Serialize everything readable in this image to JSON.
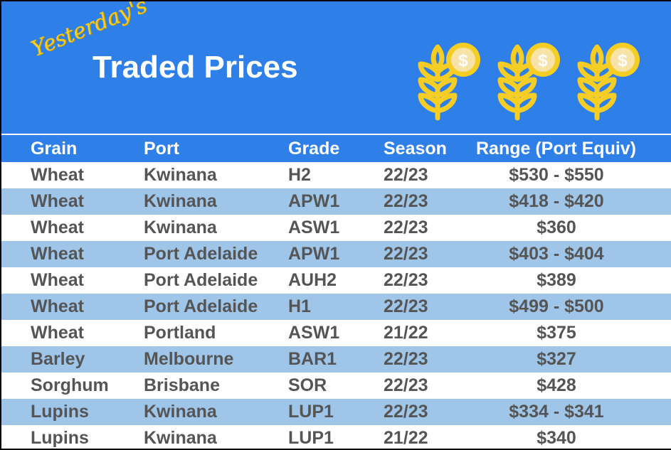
{
  "banner": {
    "script_title": "Yesterday's",
    "main_title": "Traded Prices",
    "icons": [
      "wheat-dollar-icon",
      "wheat-dollar-icon",
      "wheat-dollar-icon"
    ],
    "colors": {
      "background": "#2f7fe8",
      "accent_yellow": "#f5cd25",
      "coin_light": "#f7e3a8"
    }
  },
  "table": {
    "headers": [
      "Grain",
      "Port",
      "Grade",
      "Season",
      "Range (Port Equiv)"
    ],
    "rows": [
      [
        "Wheat",
        "Kwinana",
        "H2",
        "22/23",
        "$530 - $550"
      ],
      [
        "Wheat",
        "Kwinana",
        "APW1",
        "22/23",
        "$418 - $420"
      ],
      [
        "Wheat",
        "Kwinana",
        "ASW1",
        "22/23",
        "$360"
      ],
      [
        "Wheat",
        "Port Adelaide",
        "APW1",
        "22/23",
        "$403 - $404"
      ],
      [
        "Wheat",
        "Port Adelaide",
        "AUH2",
        "22/23",
        "$389"
      ],
      [
        "Wheat",
        "Port Adelaide",
        "H1",
        "22/23",
        "$499 - $500"
      ],
      [
        "Wheat",
        "Portland",
        "ASW1",
        "21/22",
        "$375"
      ],
      [
        "Barley",
        "Melbourne",
        "BAR1",
        "22/23",
        "$327"
      ],
      [
        "Sorghum",
        "Brisbane",
        "SOR",
        "22/23",
        "$428"
      ],
      [
        "Lupins",
        "Kwinana",
        "LUP1",
        "22/23",
        "$334 - $341"
      ],
      [
        "Lupins",
        "Kwinana",
        "LUP1",
        "21/22",
        "$340"
      ]
    ],
    "colors": {
      "header_bg": "#2f7fe8",
      "alt_row_bg": "#9fc5e8",
      "text": "#555555"
    }
  }
}
